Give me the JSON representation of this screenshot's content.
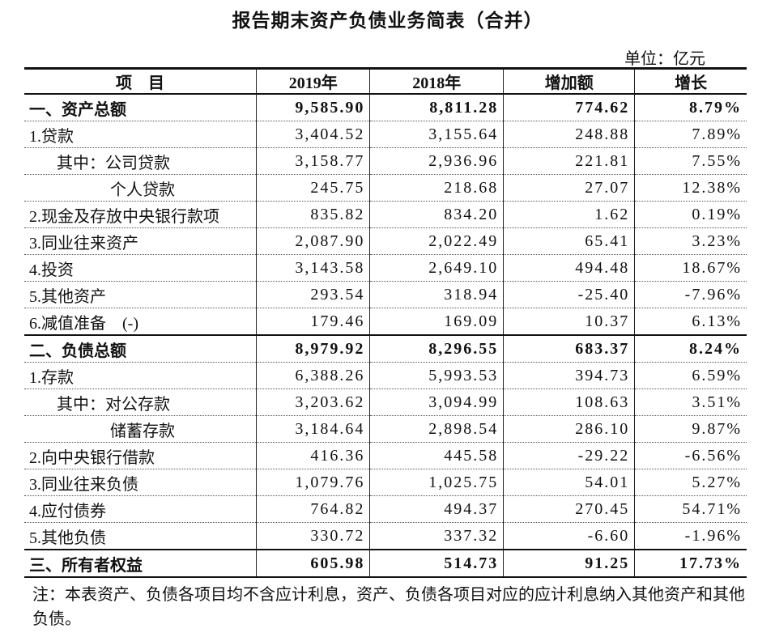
{
  "title": "报告期末资产负债业务简表（合并）",
  "unit": "单位：亿元",
  "table": {
    "header": [
      "项　目",
      "2019年",
      "2018年",
      "增加额",
      "增长"
    ],
    "rows": [
      [
        "一、资产总额",
        "9,585.90",
        "8,811.28",
        "774.62",
        "8.79%"
      ],
      [
        "1.贷款",
        "3,404.52",
        "3,155.64",
        "248.88",
        "7.89%"
      ],
      [
        "其中：公司贷款",
        "3,158.77",
        "2,936.96",
        "221.81",
        "7.55%"
      ],
      [
        "个人贷款",
        "245.75",
        "218.68",
        "27.07",
        "12.38%"
      ],
      [
        "2.现金及存放中央银行款项",
        "835.82",
        "834.20",
        "1.62",
        "0.19%"
      ],
      [
        "3.同业往来资产",
        "2,087.90",
        "2,022.49",
        "65.41",
        "3.23%"
      ],
      [
        "4.投资",
        "3,143.58",
        "2,649.10",
        "494.48",
        "18.67%"
      ],
      [
        "5.其他资产",
        "293.54",
        "318.94",
        "-25.40",
        "-7.96%"
      ],
      [
        "6.减值准备　(-)",
        "179.46",
        "169.09",
        "10.37",
        "6.13%"
      ],
      [
        "二、负债总额",
        "8,979.92",
        "8,296.55",
        "683.37",
        "8.24%"
      ],
      [
        "1.存款",
        "6,388.26",
        "5,993.53",
        "394.73",
        "6.59%"
      ],
      [
        "其中：对公存款",
        "3,203.62",
        "3,094.99",
        "108.63",
        "3.51%"
      ],
      [
        "储蓄存款",
        "3,184.64",
        "2,898.54",
        "286.10",
        "9.87%"
      ],
      [
        "2.向中央银行借款",
        "416.36",
        "445.58",
        "-29.22",
        "-6.56%"
      ],
      [
        "3.同业往来负债",
        "1,079.76",
        "1,025.75",
        "54.01",
        "5.27%"
      ],
      [
        "4.应付债券",
        "764.82",
        "494.37",
        "270.45",
        "54.71%"
      ],
      [
        "5.其他负债",
        "330.72",
        "337.32",
        "-6.60",
        "-1.96%"
      ],
      [
        "三、所有者权益",
        "605.98",
        "514.73",
        "91.25",
        "17.73%"
      ]
    ]
  },
  "note": "注：本表资产、负债各项目均不含应计利息，资产、负债各项目对应的应计利息纳入其他资产和其他负债。"
}
